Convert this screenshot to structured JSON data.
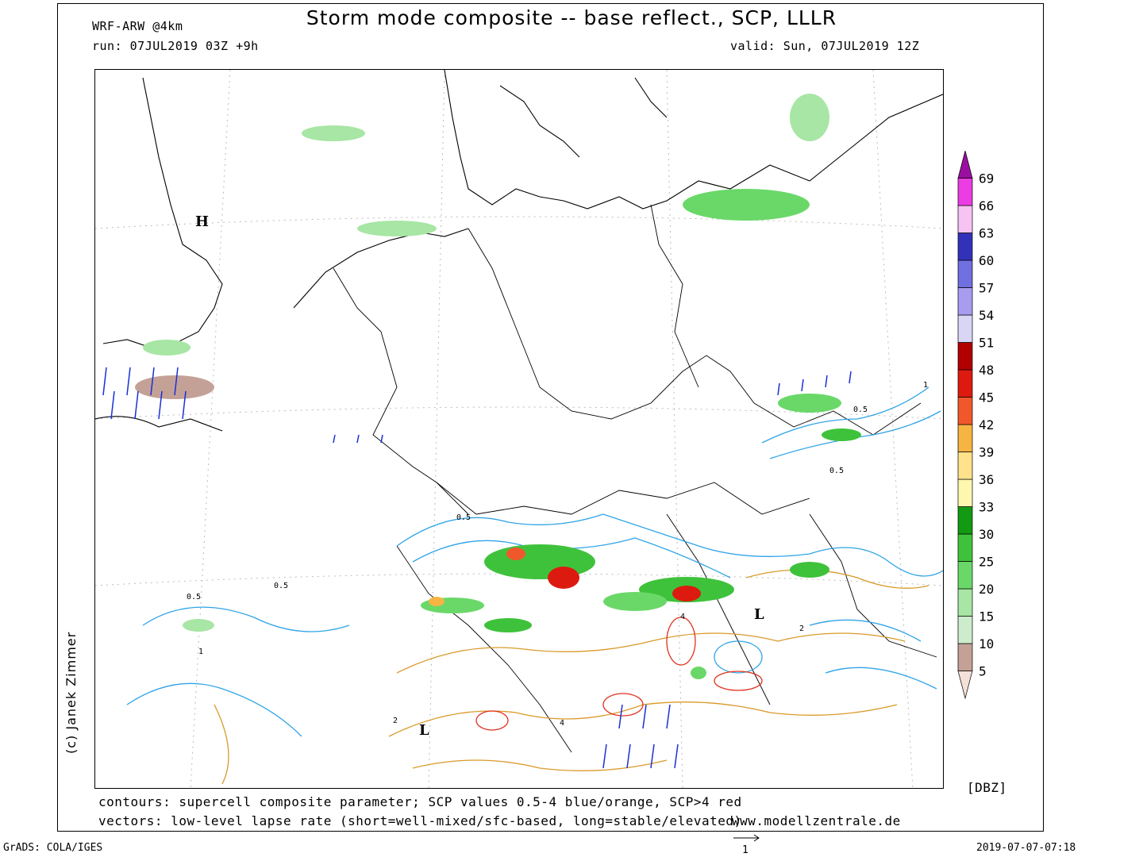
{
  "header": {
    "title": "Storm mode composite -- base reflect., SCP, LLLR",
    "model": "WRF-ARW @4km",
    "run": "run: 07JUL2019 03Z +9h",
    "valid": "valid: Sun, 07JUL2019 12Z"
  },
  "map": {
    "pressure_labels": [
      "H",
      "L",
      "L"
    ],
    "contour_labels": [
      "0.5",
      "1",
      "2",
      "4"
    ]
  },
  "colorbar": {
    "unit": "[DBZ]",
    "levels": [
      "5",
      "10",
      "15",
      "20",
      "25",
      "30",
      "33",
      "36",
      "39",
      "42",
      "45",
      "48",
      "51",
      "54",
      "57",
      "60",
      "63",
      "66",
      "69"
    ],
    "colors": [
      "#f3e0d8",
      "#c4a196",
      "#cdeccc",
      "#a7e6a4",
      "#6ad868",
      "#3fc23b",
      "#139a13",
      "#fff7b0",
      "#ffe28a",
      "#f6b443",
      "#f0582c",
      "#dd1a10",
      "#b20000",
      "#d9d5f5",
      "#a89cf0",
      "#7070e0",
      "#3232b8",
      "#f7c3f2",
      "#eb3de3",
      "#9a0f9f"
    ]
  },
  "footer": {
    "contours_note": "contours: supercell composite parameter; SCP values 0.5-4 blue/orange, SCP>4 red",
    "vectors_note": "vectors: low-level lapse rate (short=well-mixed/sfc-based, long=stable/elevated)",
    "website": "www.modellzentrale.de",
    "grads": "GrADS: COLA/IGES",
    "timestamp": "2019-07-07-07:18",
    "vector_scale": "1",
    "credit": "(c) Janek Zimmer"
  }
}
